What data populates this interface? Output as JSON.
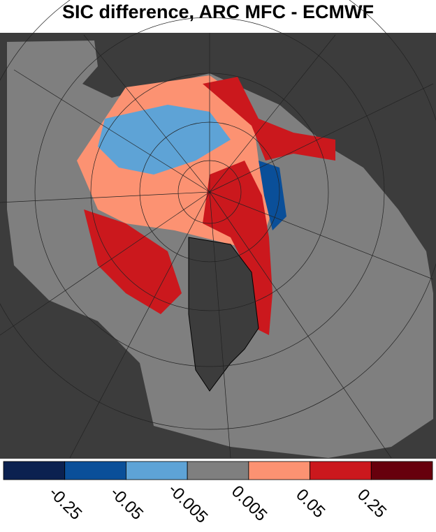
{
  "title": "SIC difference, ARC MFC - ECMWF",
  "colorbar": {
    "colors": [
      "#0b2150",
      "#0a4f99",
      "#5ea3d6",
      "#7f7f7f",
      "#fc9272",
      "#cb181d",
      "#67000d"
    ],
    "ticks": [
      -0.25,
      -0.05,
      -0.005,
      0.005,
      0.05,
      0.25
    ]
  }
}
